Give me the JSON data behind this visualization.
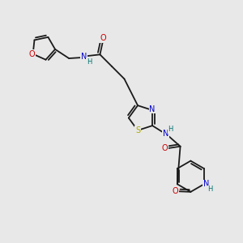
{
  "bg_color": "#e8e8e8",
  "bond_color": "#1a1a1a",
  "atom_colors": {
    "N": "#0000cc",
    "O": "#cc0000",
    "S": "#aaaa00",
    "H": "#007070",
    "C": "#1a1a1a"
  },
  "font_size": 7.0,
  "lw": 1.3
}
